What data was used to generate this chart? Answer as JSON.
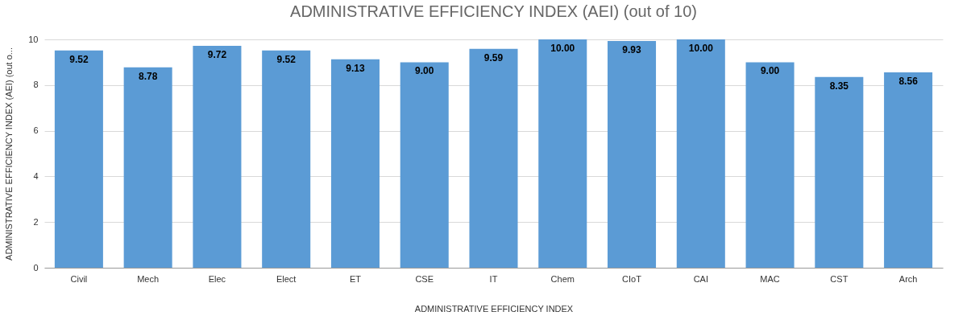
{
  "chart_data": {
    "type": "bar",
    "title": "ADMINISTRATIVE EFFICIENCY INDEX (AEI) (out of 10)",
    "xlabel": "ADMINISTRATIVE EFFICIENCY INDEX",
    "ylabel": "ADMINISTRATIVE EFFICIENCY INDEX (AEI) (out o...",
    "categories": [
      "Civil",
      "Mech",
      "Elec",
      "Elect",
      "ET",
      "CSE",
      "IT",
      "Chem",
      "CIoT",
      "CAI",
      "MAC",
      "CST",
      "Arch"
    ],
    "values": [
      9.52,
      8.78,
      9.72,
      9.52,
      9.13,
      9.0,
      9.59,
      10.0,
      9.93,
      10.0,
      9.0,
      8.35,
      8.56
    ],
    "value_labels": [
      "9.52",
      "8.78",
      "9.72",
      "9.52",
      "9.13",
      "9.00",
      "9.59",
      "10.00",
      "9.93",
      "10.00",
      "9.00",
      "8.35",
      "8.56"
    ],
    "color": "#5b9bd5",
    "ylim": [
      0,
      10
    ],
    "yticks": [
      0,
      2,
      4,
      6,
      8,
      10
    ],
    "grid": "y"
  }
}
